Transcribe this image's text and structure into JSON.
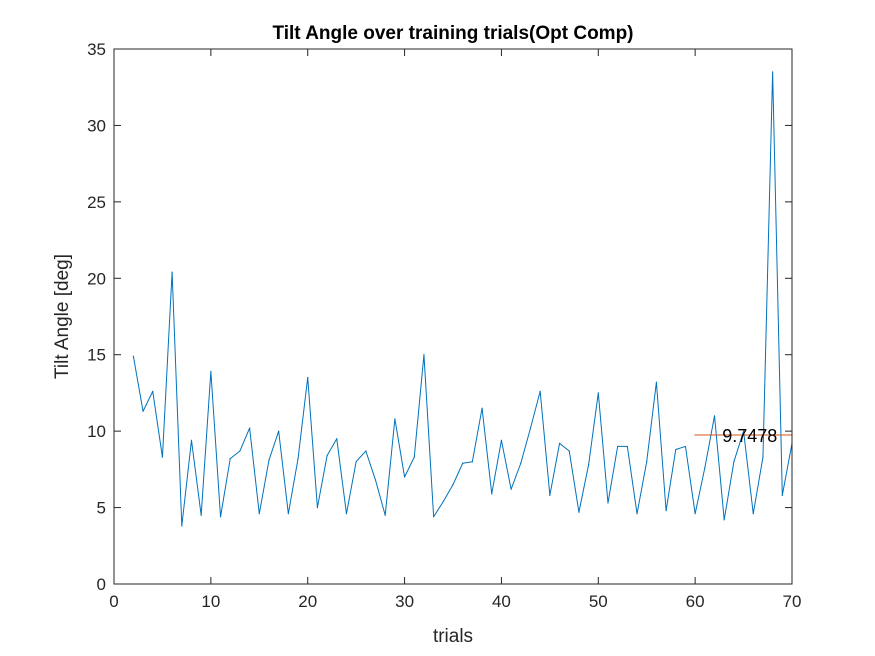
{
  "chart_data": {
    "type": "line",
    "title": "Tilt Angle over training trials(Opt Comp)",
    "xlabel": "trials",
    "ylabel": "Tilt Angle [deg]",
    "xlim": [
      0,
      70
    ],
    "ylim": [
      0,
      35
    ],
    "xticks": [
      0,
      10,
      20,
      30,
      40,
      50,
      60,
      70
    ],
    "yticks": [
      0,
      5,
      10,
      15,
      20,
      25,
      30,
      35
    ],
    "xtick_labels": [
      "0",
      "10",
      "20",
      "30",
      "40",
      "50",
      "60",
      "70"
    ],
    "ytick_labels": [
      "0",
      "5",
      "10",
      "15",
      "20",
      "25",
      "30",
      "35"
    ],
    "grid": false,
    "legend": "none",
    "series": [
      {
        "color": "#0072BD",
        "x": [
          2,
          3,
          4,
          5,
          6,
          7,
          8,
          9,
          10,
          11,
          12,
          13,
          14,
          15,
          16,
          17,
          18,
          19,
          20,
          21,
          22,
          23,
          24,
          25,
          26,
          27,
          28,
          29,
          30,
          31,
          32,
          33,
          34,
          35,
          36,
          37,
          38,
          39,
          40,
          41,
          42,
          43,
          44,
          45,
          46,
          47,
          48,
          49,
          50,
          51,
          52,
          53,
          54,
          55,
          56,
          57,
          58,
          59,
          60,
          61,
          62,
          63,
          64,
          65,
          66,
          67,
          68,
          69,
          70
        ],
        "values": [
          14.9,
          11.3,
          12.6,
          8.3,
          20.4,
          3.8,
          9.4,
          4.5,
          13.9,
          4.4,
          8.2,
          8.7,
          10.2,
          4.6,
          8.1,
          10.0,
          4.6,
          8.2,
          13.5,
          5.0,
          8.4,
          9.5,
          4.6,
          8.0,
          8.7,
          6.8,
          4.5,
          10.8,
          7.0,
          8.3,
          15.0,
          4.4,
          5.4,
          6.5,
          7.9,
          8.0,
          11.5,
          5.9,
          9.4,
          6.2,
          7.9,
          10.2,
          12.6,
          5.8,
          9.2,
          8.7,
          4.7,
          7.8,
          12.5,
          5.3,
          9.0,
          9.0,
          4.6,
          8.0,
          13.2,
          4.8,
          8.8,
          9.0,
          4.6,
          7.6,
          11.0,
          4.2,
          8.0,
          10.0,
          4.6,
          8.3,
          33.5,
          5.8,
          9.2
        ]
      },
      {
        "color": "#D95319",
        "x": [
          60,
          70
        ],
        "values": [
          9.7478,
          9.7478
        ]
      }
    ],
    "annotations": [
      {
        "text": "9.7478",
        "x": 62.8,
        "y": 9.7478
      }
    ]
  }
}
